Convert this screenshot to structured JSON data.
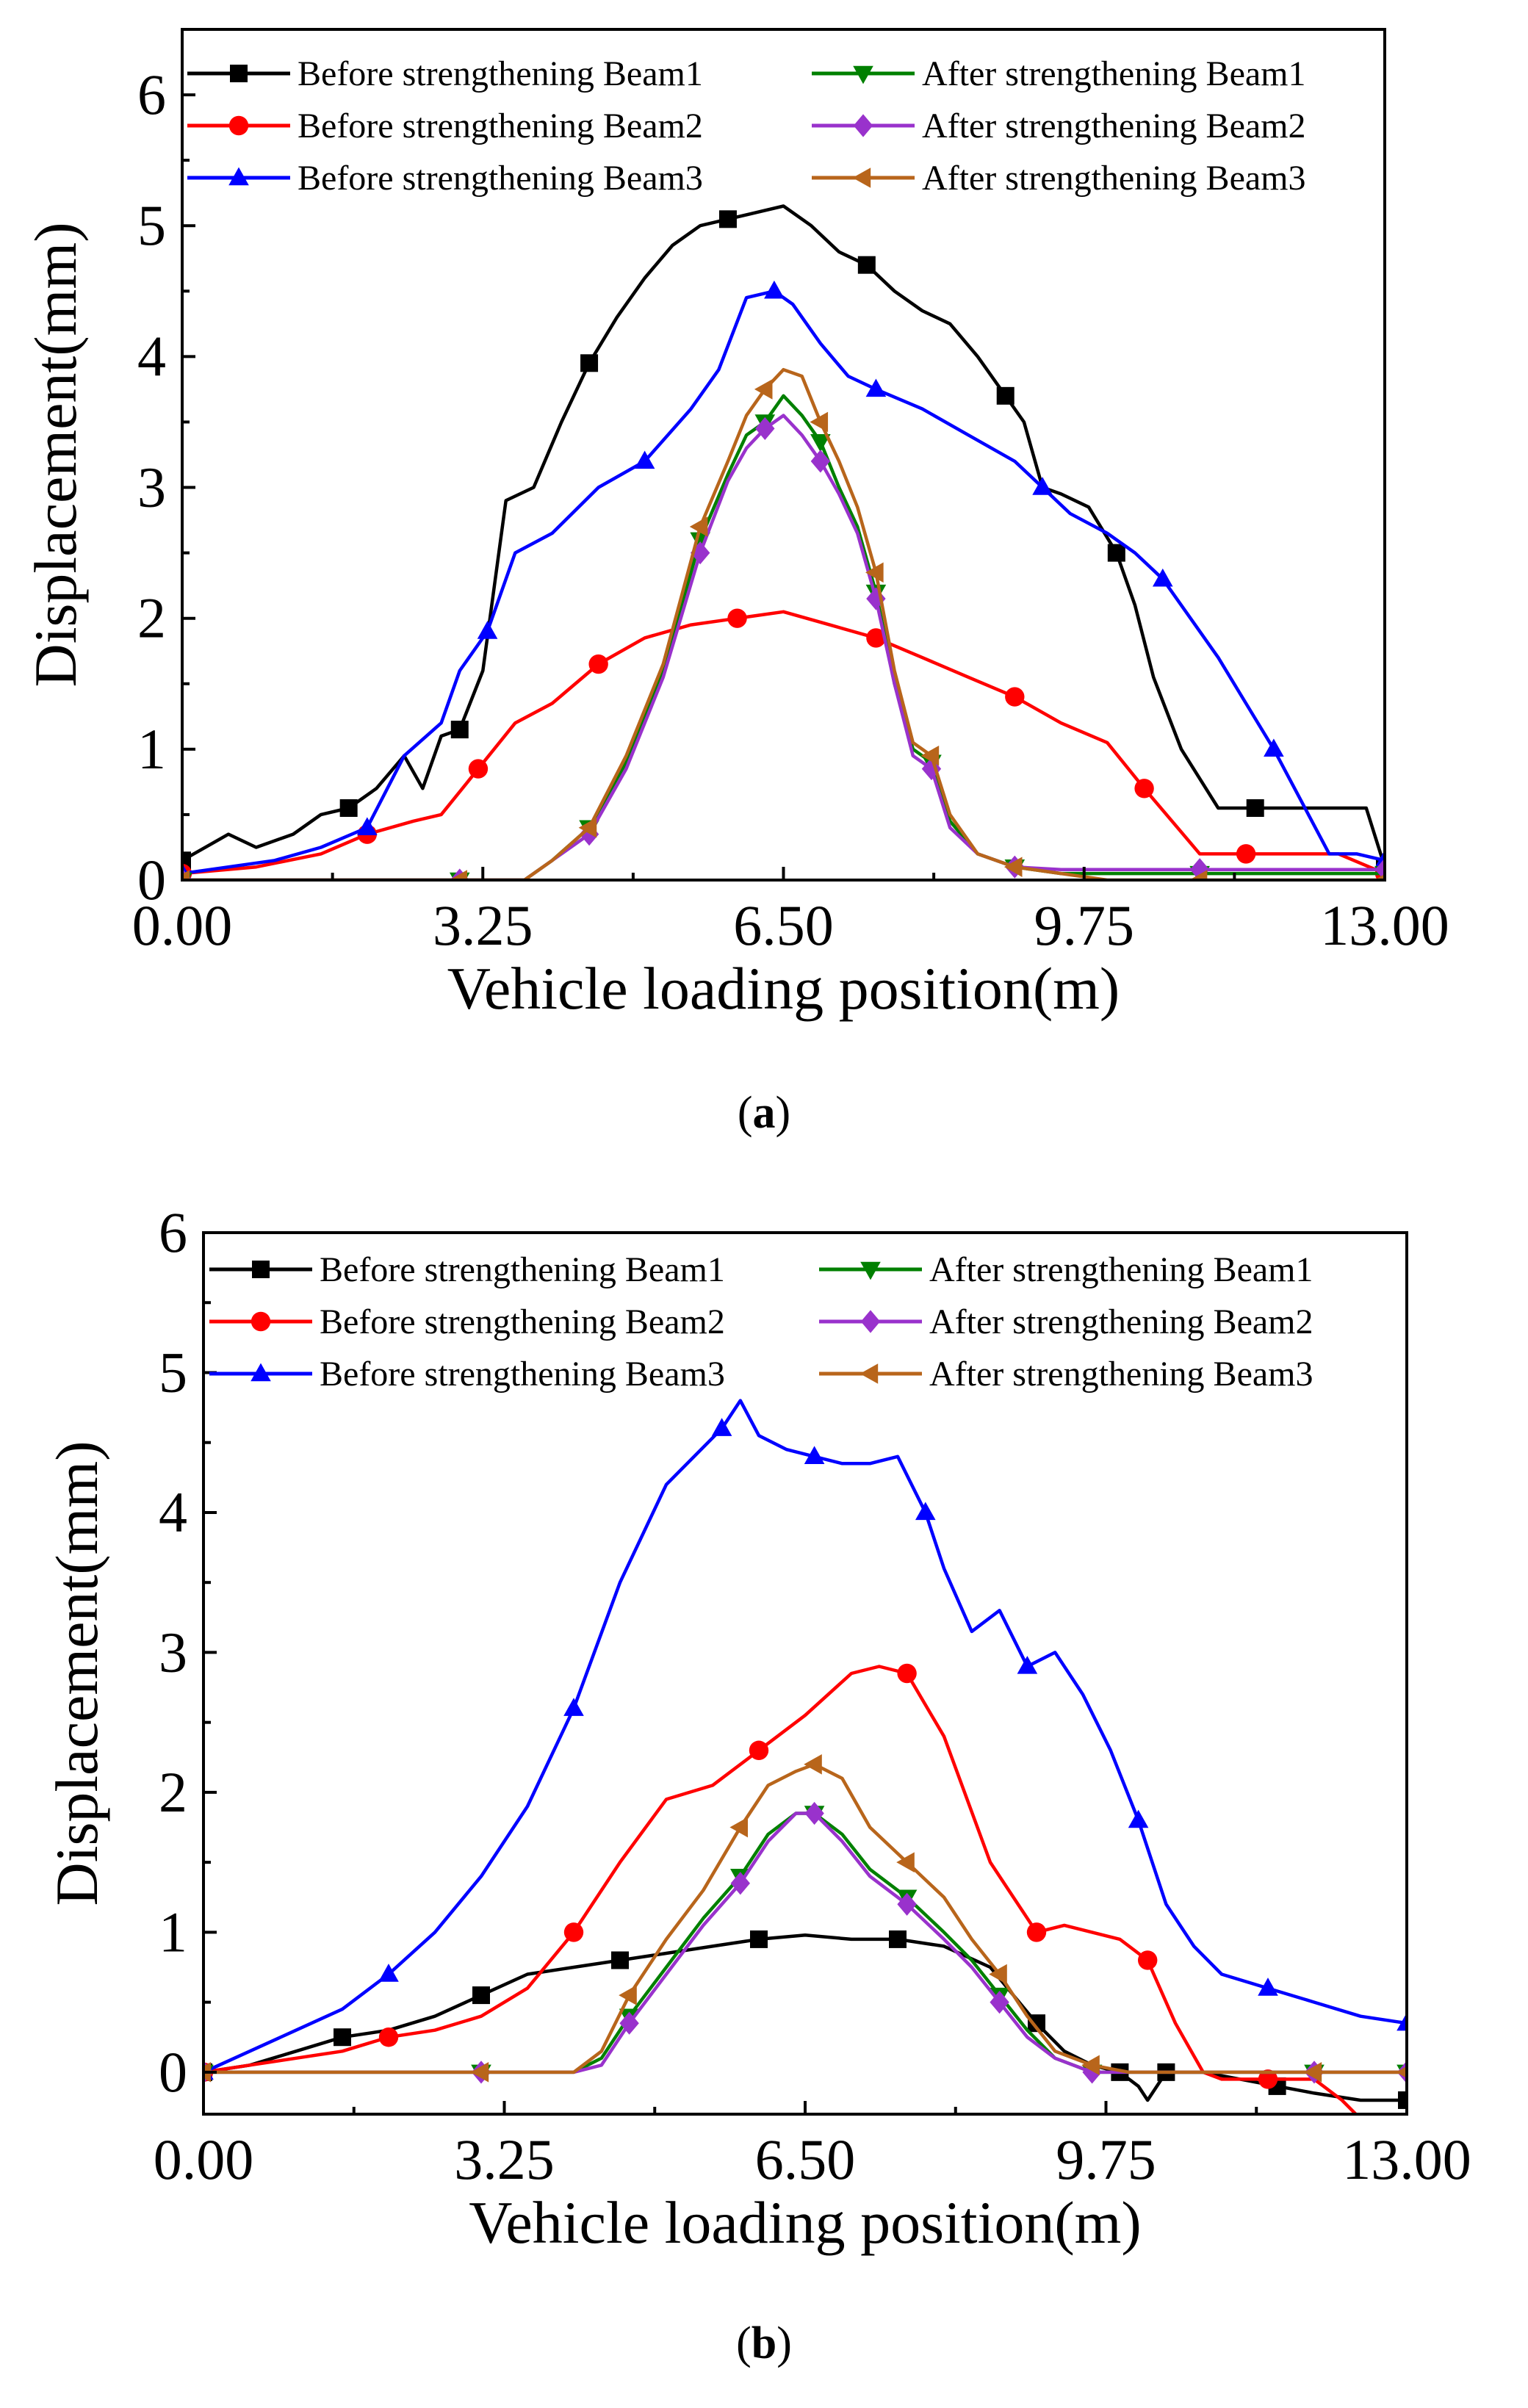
{
  "chart_data": [
    {
      "type": "line",
      "panel_label": "(a)",
      "xlabel": "Vehicle loading position(m)",
      "ylabel": "Displacement(mm)",
      "xlim": [
        0,
        13
      ],
      "ylim": [
        0,
        6.5
      ],
      "xticks": [
        "0.00",
        "3.25",
        "6.50",
        "9.75",
        "13.00"
      ],
      "yticks": [
        "0",
        "1",
        "2",
        "3",
        "4",
        "5",
        "6"
      ],
      "legend_position": "top",
      "series": [
        {
          "name": "Before strengthening Beam1",
          "color": "#000000",
          "marker": "square",
          "x": [
            0,
            0.5,
            0.8,
            1.2,
            1.5,
            1.8,
            2.1,
            2.4,
            2.6,
            2.8,
            3.0,
            3.25,
            3.5,
            3.8,
            4.1,
            4.4,
            4.7,
            5.0,
            5.3,
            5.6,
            5.9,
            6.2,
            6.5,
            6.8,
            7.1,
            7.4,
            7.7,
            8.0,
            8.3,
            8.6,
            8.9,
            9.1,
            9.3,
            9.5,
            9.8,
            10.1,
            10.3,
            10.5,
            10.8,
            11.2,
            11.6,
            12.0,
            12.5,
            12.8,
            13.0
          ],
          "y": [
            0.15,
            0.35,
            0.25,
            0.35,
            0.5,
            0.55,
            0.7,
            0.95,
            0.7,
            1.1,
            1.15,
            1.6,
            2.9,
            3.0,
            3.5,
            3.95,
            4.3,
            4.6,
            4.85,
            5.0,
            5.05,
            5.1,
            5.15,
            5.0,
            4.8,
            4.7,
            4.5,
            4.35,
            4.25,
            4.0,
            3.7,
            3.5,
            3.0,
            2.95,
            2.85,
            2.5,
            2.1,
            1.55,
            1.0,
            0.55,
            0.55,
            0.55,
            0.55,
            0.55,
            0.1
          ]
        },
        {
          "name": "Before strengthening Beam2",
          "color": "#ff0000",
          "marker": "circle",
          "x": [
            0,
            0.8,
            1.5,
            2.0,
            2.5,
            2.8,
            3.2,
            3.6,
            4.0,
            4.5,
            5.0,
            5.5,
            6.0,
            6.5,
            7.0,
            7.5,
            8.0,
            8.5,
            9.0,
            9.5,
            10.0,
            10.4,
            10.7,
            11.0,
            11.5,
            12.0,
            12.5,
            13.0
          ],
          "y": [
            0.05,
            0.1,
            0.2,
            0.35,
            0.45,
            0.5,
            0.85,
            1.2,
            1.35,
            1.65,
            1.85,
            1.95,
            2.0,
            2.05,
            1.95,
            1.85,
            1.7,
            1.55,
            1.4,
            1.2,
            1.05,
            0.7,
            0.45,
            0.2,
            0.2,
            0.2,
            0.2,
            0.05
          ]
        },
        {
          "name": "Before strengthening Beam3",
          "color": "#0000ff",
          "marker": "triangle-up",
          "x": [
            0,
            0.5,
            1.0,
            1.5,
            2.0,
            2.4,
            2.8,
            3.0,
            3.3,
            3.6,
            4.0,
            4.5,
            5.0,
            5.5,
            5.8,
            6.1,
            6.4,
            6.6,
            6.9,
            7.2,
            7.5,
            8.0,
            8.5,
            9.0,
            9.3,
            9.6,
            10.0,
            10.3,
            10.6,
            10.9,
            11.2,
            11.5,
            11.8,
            12.1,
            12.4,
            12.7,
            13.0
          ],
          "y": [
            0.05,
            0.1,
            0.15,
            0.25,
            0.4,
            0.95,
            1.2,
            1.6,
            1.9,
            2.5,
            2.65,
            3.0,
            3.2,
            3.6,
            3.9,
            4.45,
            4.5,
            4.4,
            4.1,
            3.85,
            3.75,
            3.6,
            3.4,
            3.2,
            3.0,
            2.8,
            2.65,
            2.5,
            2.3,
            2.0,
            1.7,
            1.35,
            1.0,
            0.6,
            0.2,
            0.2,
            0.15
          ]
        },
        {
          "name": "After strengthening Beam1",
          "color": "#008000",
          "marker": "triangle-down",
          "x": [
            0,
            1.0,
            2.0,
            3.0,
            3.7,
            4.0,
            4.4,
            4.8,
            5.2,
            5.6,
            5.9,
            6.1,
            6.3,
            6.5,
            6.7,
            6.9,
            7.1,
            7.3,
            7.5,
            7.7,
            7.9,
            8.1,
            8.3,
            8.6,
            9.0,
            9.5,
            10.0,
            11.0,
            12.0,
            13.0
          ],
          "y": [
            0.0,
            0.0,
            0.0,
            0.0,
            0.0,
            0.15,
            0.4,
            0.9,
            1.6,
            2.6,
            3.1,
            3.4,
            3.5,
            3.7,
            3.55,
            3.35,
            3.0,
            2.7,
            2.2,
            1.5,
            1.0,
            0.9,
            0.45,
            0.2,
            0.1,
            0.05,
            0.05,
            0.05,
            0.05,
            0.05
          ]
        },
        {
          "name": "After strengthening Beam2",
          "color": "#9932cc",
          "marker": "diamond",
          "x": [
            0,
            1.0,
            2.0,
            3.0,
            3.7,
            4.0,
            4.4,
            4.8,
            5.2,
            5.6,
            5.9,
            6.1,
            6.3,
            6.5,
            6.7,
            6.9,
            7.1,
            7.3,
            7.5,
            7.7,
            7.9,
            8.1,
            8.3,
            8.6,
            9.0,
            9.5,
            10.0,
            11.0,
            12.0,
            13.0
          ],
          "y": [
            0.0,
            0.0,
            0.0,
            0.0,
            0.0,
            0.15,
            0.35,
            0.85,
            1.55,
            2.5,
            3.05,
            3.3,
            3.45,
            3.55,
            3.4,
            3.2,
            2.95,
            2.65,
            2.15,
            1.5,
            0.95,
            0.85,
            0.4,
            0.2,
            0.1,
            0.08,
            0.08,
            0.08,
            0.08,
            0.08
          ]
        },
        {
          "name": "After strengthening Beam3",
          "color": "#b8651b",
          "marker": "triangle-left",
          "x": [
            0,
            1.0,
            2.0,
            3.0,
            3.7,
            4.0,
            4.4,
            4.8,
            5.2,
            5.6,
            5.9,
            6.1,
            6.3,
            6.5,
            6.7,
            6.9,
            7.1,
            7.3,
            7.5,
            7.7,
            7.9,
            8.1,
            8.3,
            8.6,
            9.0,
            9.5,
            10.0,
            11.0,
            12.0,
            13.0
          ],
          "y": [
            0.0,
            0.0,
            0.0,
            0.0,
            0.0,
            0.15,
            0.4,
            0.95,
            1.65,
            2.7,
            3.2,
            3.55,
            3.75,
            3.9,
            3.85,
            3.5,
            3.2,
            2.85,
            2.35,
            1.6,
            1.05,
            0.95,
            0.5,
            0.2,
            0.1,
            0.05,
            0.0,
            0.0,
            0.0,
            0.0
          ]
        }
      ]
    },
    {
      "type": "line",
      "panel_label": "(b)",
      "xlabel": "Vehicle loading position(m)",
      "ylabel": "Displacement(mm)",
      "xlim": [
        0,
        13
      ],
      "ylim": [
        -0.3,
        6
      ],
      "xticks": [
        "0.00",
        "3.25",
        "6.50",
        "9.75",
        "13.00"
      ],
      "yticks": [
        "0",
        "1",
        "2",
        "3",
        "4",
        "5",
        "6"
      ],
      "legend_position": "top",
      "series": [
        {
          "name": "Before strengthening Beam1",
          "color": "#000000",
          "marker": "square",
          "x": [
            0,
            0.5,
            1.0,
            1.5,
            2.0,
            2.5,
            3.0,
            3.5,
            4.0,
            4.5,
            5.0,
            5.5,
            6.0,
            6.5,
            7.0,
            7.5,
            8.0,
            8.5,
            9.0,
            9.3,
            9.6,
            9.9,
            10.1,
            10.2,
            10.4,
            10.8,
            11.2,
            11.6,
            12.0,
            12.5,
            13.0
          ],
          "y": [
            0.0,
            0.05,
            0.15,
            0.25,
            0.3,
            0.4,
            0.55,
            0.7,
            0.75,
            0.8,
            0.85,
            0.9,
            0.95,
            0.98,
            0.95,
            0.95,
            0.9,
            0.75,
            0.35,
            0.15,
            0.05,
            0.0,
            -0.1,
            -0.2,
            0.0,
            0.0,
            -0.05,
            -0.1,
            -0.15,
            -0.2,
            -0.2
          ]
        },
        {
          "name": "Before strengthening Beam2",
          "color": "#ff0000",
          "marker": "circle",
          "x": [
            0,
            0.5,
            1.0,
            1.5,
            2.0,
            2.5,
            3.0,
            3.5,
            4.0,
            4.5,
            5.0,
            5.5,
            6.0,
            6.5,
            7.0,
            7.3,
            7.6,
            8.0,
            8.5,
            8.7,
            9.0,
            9.3,
            9.6,
            9.9,
            10.2,
            10.5,
            10.8,
            11.0,
            11.5,
            12.0,
            12.3,
            12.6,
            13.0
          ],
          "y": [
            0.0,
            0.05,
            0.1,
            0.15,
            0.25,
            0.3,
            0.4,
            0.6,
            1.0,
            1.5,
            1.95,
            2.05,
            2.3,
            2.55,
            2.85,
            2.9,
            2.85,
            2.4,
            1.5,
            1.3,
            1.0,
            1.05,
            1.0,
            0.95,
            0.8,
            0.35,
            0.0,
            -0.05,
            -0.05,
            -0.05,
            -0.2,
            -0.4,
            -0.75
          ]
        },
        {
          "name": "Before strengthening Beam3",
          "color": "#0000ff",
          "marker": "triangle-up",
          "x": [
            0,
            0.5,
            1.0,
            1.5,
            2.0,
            2.5,
            3.0,
            3.5,
            4.0,
            4.5,
            5.0,
            5.3,
            5.6,
            5.8,
            6.0,
            6.3,
            6.6,
            6.9,
            7.2,
            7.5,
            7.8,
            8.0,
            8.3,
            8.6,
            8.9,
            9.2,
            9.5,
            9.8,
            10.1,
            10.4,
            10.7,
            11.0,
            11.5,
            12.0,
            12.5,
            13.0
          ],
          "y": [
            0.0,
            0.15,
            0.3,
            0.45,
            0.7,
            1.0,
            1.4,
            1.9,
            2.6,
            3.5,
            4.2,
            4.4,
            4.6,
            4.8,
            4.55,
            4.45,
            4.4,
            4.35,
            4.35,
            4.4,
            4.0,
            3.6,
            3.15,
            3.3,
            2.9,
            3.0,
            2.7,
            2.3,
            1.8,
            1.2,
            0.9,
            0.7,
            0.6,
            0.5,
            0.4,
            0.35
          ]
        },
        {
          "name": "After strengthening Beam1",
          "color": "#008000",
          "marker": "triangle-down",
          "x": [
            0,
            1.0,
            2.0,
            3.0,
            4.0,
            4.3,
            4.6,
            5.0,
            5.4,
            5.8,
            6.1,
            6.4,
            6.6,
            6.9,
            7.2,
            7.6,
            8.0,
            8.3,
            8.6,
            8.9,
            9.2,
            9.6,
            10.0,
            11.0,
            12.0,
            13.0
          ],
          "y": [
            0.0,
            0.0,
            0.0,
            0.0,
            0.0,
            0.1,
            0.4,
            0.75,
            1.1,
            1.4,
            1.7,
            1.85,
            1.85,
            1.7,
            1.45,
            1.25,
            1.0,
            0.8,
            0.55,
            0.3,
            0.1,
            0.0,
            0.0,
            0.0,
            0.0,
            0.0
          ]
        },
        {
          "name": "After strengthening Beam2",
          "color": "#9932cc",
          "marker": "diamond",
          "x": [
            0,
            1.0,
            2.0,
            3.0,
            4.0,
            4.3,
            4.6,
            5.0,
            5.4,
            5.8,
            6.1,
            6.4,
            6.6,
            6.9,
            7.2,
            7.6,
            8.0,
            8.3,
            8.6,
            8.9,
            9.2,
            9.6,
            10.0,
            11.0,
            12.0,
            13.0
          ],
          "y": [
            0.0,
            0.0,
            0.0,
            0.0,
            0.0,
            0.05,
            0.35,
            0.7,
            1.05,
            1.35,
            1.65,
            1.85,
            1.85,
            1.65,
            1.4,
            1.2,
            0.95,
            0.75,
            0.5,
            0.25,
            0.1,
            0.0,
            0.0,
            0.0,
            0.0,
            0.0
          ]
        },
        {
          "name": "After strengthening Beam3",
          "color": "#b8651b",
          "marker": "triangle-left",
          "x": [
            0,
            1.0,
            2.0,
            3.0,
            4.0,
            4.3,
            4.6,
            5.0,
            5.4,
            5.8,
            6.1,
            6.4,
            6.6,
            6.9,
            7.2,
            7.6,
            8.0,
            8.3,
            8.6,
            8.9,
            9.2,
            9.6,
            10.0,
            11.0,
            12.0,
            13.0
          ],
          "y": [
            0.0,
            0.0,
            0.0,
            0.0,
            0.0,
            0.15,
            0.55,
            0.95,
            1.3,
            1.75,
            2.05,
            2.15,
            2.2,
            2.1,
            1.75,
            1.5,
            1.25,
            0.95,
            0.7,
            0.4,
            0.15,
            0.05,
            0.0,
            0.0,
            0.0,
            0.0
          ]
        }
      ]
    }
  ]
}
